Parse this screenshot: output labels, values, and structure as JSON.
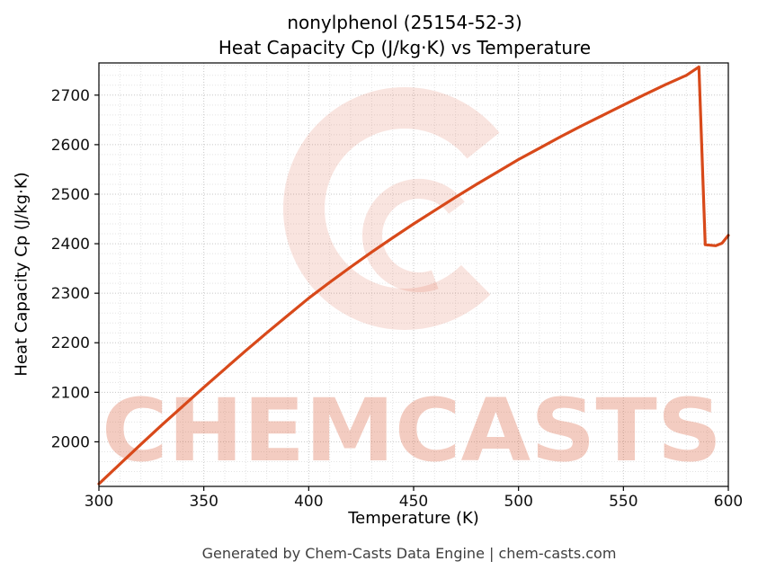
{
  "figure": {
    "footer": "Generated by Chem-Casts Data Engine | chem-casts.com"
  },
  "chart_data": {
    "type": "line",
    "title": "nonylphenol (25154-52-3)",
    "subtitle": "Heat Capacity Cp (J/kg·K) vs Temperature",
    "xlabel": "Temperature (K)",
    "ylabel": "Heat Capacity Cp (J/kg·K)",
    "xlim": [
      300,
      600
    ],
    "ylim": [
      1910,
      2765
    ],
    "x_ticks": [
      300,
      350,
      400,
      450,
      500,
      550,
      600
    ],
    "y_ticks": [
      2000,
      2100,
      2200,
      2300,
      2400,
      2500,
      2600,
      2700
    ],
    "x_minor_step": 10,
    "y_minor_step": 20,
    "grid": true,
    "legend": "none",
    "line_color": "#d8491a",
    "series": [
      {
        "name": "Heat Capacity Cp (J/kg·K)",
        "points": [
          [
            300,
            1915
          ],
          [
            310,
            1955
          ],
          [
            320,
            1995
          ],
          [
            330,
            2034
          ],
          [
            340,
            2072
          ],
          [
            350,
            2110
          ],
          [
            360,
            2147
          ],
          [
            370,
            2184
          ],
          [
            380,
            2220
          ],
          [
            390,
            2255
          ],
          [
            400,
            2290
          ],
          [
            410,
            2322
          ],
          [
            420,
            2353
          ],
          [
            430,
            2383
          ],
          [
            440,
            2412
          ],
          [
            450,
            2440
          ],
          [
            460,
            2467
          ],
          [
            470,
            2494
          ],
          [
            480,
            2520
          ],
          [
            490,
            2545
          ],
          [
            500,
            2570
          ],
          [
            510,
            2593
          ],
          [
            520,
            2616
          ],
          [
            530,
            2638
          ],
          [
            540,
            2659
          ],
          [
            550,
            2680
          ],
          [
            560,
            2701
          ],
          [
            570,
            2721
          ],
          [
            580,
            2740
          ],
          [
            586,
            2757
          ],
          [
            589,
            2398
          ],
          [
            594,
            2396
          ],
          [
            597,
            2401
          ],
          [
            600,
            2417
          ]
        ]
      }
    ],
    "watermark": {
      "text": "CHEMCASTS",
      "color": "#d85a35",
      "text_opacity": 0.3,
      "logo_opacity": 0.16
    }
  }
}
